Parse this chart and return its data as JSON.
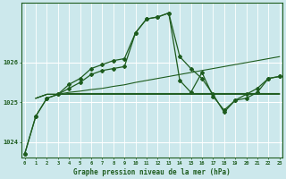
{
  "title": "Graphe pression niveau de la mer (hPa)",
  "background_color": "#cce8ec",
  "grid_color": "#ffffff",
  "line_color": "#1e5c1e",
  "x_ticks": [
    0,
    1,
    2,
    3,
    4,
    5,
    6,
    7,
    8,
    9,
    10,
    11,
    12,
    13,
    14,
    15,
    16,
    17,
    18,
    19,
    20,
    21,
    22,
    23
  ],
  "ylim": [
    1023.6,
    1027.5
  ],
  "yticks": [
    1024,
    1025,
    1026
  ],
  "series": {
    "main_line": [
      1023.7,
      1024.65,
      1025.1,
      1025.2,
      1025.45,
      1025.6,
      1025.85,
      1025.95,
      1026.05,
      1026.1,
      1026.75,
      1027.1,
      1027.15,
      1027.25,
      1026.15,
      1025.85,
      1025.6,
      1025.2,
      1024.75,
      1025.05,
      1025.2,
      1025.35,
      1025.6,
      1025.65
    ],
    "flat_line1": [
      1025.1,
      1025.1,
      1025.2,
      1025.2,
      1025.2,
      1025.2,
      1025.2,
      1025.2,
      1025.2,
      1025.2,
      1025.2,
      1025.2,
      1025.2,
      1025.2,
      1025.2,
      1025.2,
      1025.2,
      1025.2,
      1025.2,
      1025.2,
      1025.2,
      1025.2,
      1025.2,
      1025.2
    ],
    "flat_line2": [
      1025.1,
      1025.1,
      1025.2,
      1025.2,
      1025.22,
      1025.22,
      1025.22,
      1025.22,
      1025.22,
      1025.22,
      1025.22,
      1025.22,
      1025.22,
      1025.22,
      1025.22,
      1025.22,
      1025.22,
      1025.22,
      1025.22,
      1025.22,
      1025.22,
      1025.22,
      1025.22,
      1025.22
    ],
    "rising_line": [
      1025.1,
      1025.1,
      1025.2,
      1025.2,
      1025.25,
      1025.28,
      1025.32,
      1025.35,
      1025.4,
      1025.44,
      1025.5,
      1025.55,
      1025.6,
      1025.65,
      1025.7,
      1025.75,
      1025.8,
      1025.85,
      1025.9,
      1025.95,
      1026.0,
      1026.05,
      1026.1,
      1026.15
    ],
    "second_marked_line": [
      1023.7,
      1024.65,
      1025.1,
      1025.2,
      1025.35,
      1025.5,
      1025.7,
      1025.8,
      1025.85,
      1025.9,
      1026.75,
      1027.1,
      1027.15,
      1027.25,
      1025.55,
      1025.25,
      1025.75,
      1025.15,
      1024.8,
      1025.05,
      1025.1,
      1025.25,
      1025.6,
      1025.65
    ]
  }
}
